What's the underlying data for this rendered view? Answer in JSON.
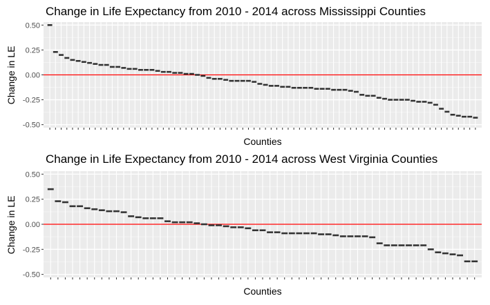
{
  "chart_data": [
    {
      "type": "scatter",
      "title": "Change in Life Expectancy from 2010 - 2014 across Mississippi Counties",
      "xlabel": "Counties",
      "ylabel": "Change in LE",
      "y_ticks": [
        "0.50",
        "0.25",
        "0.00",
        "-0.25",
        "-0.50"
      ],
      "y_tick_values": [
        0.5,
        0.25,
        0,
        -0.25,
        -0.5
      ],
      "ylim": [
        -0.53,
        0.53
      ],
      "grid": true,
      "reference_line": {
        "y": 0,
        "color": "#ff0000"
      },
      "mark_color": "#333333",
      "values": [
        0.5,
        0.23,
        0.2,
        0.17,
        0.15,
        0.14,
        0.13,
        0.12,
        0.11,
        0.1,
        0.1,
        0.08,
        0.08,
        0.07,
        0.06,
        0.06,
        0.05,
        0.05,
        0.05,
        0.04,
        0.03,
        0.03,
        0.02,
        0.02,
        0.01,
        0.01,
        0.0,
        -0.01,
        -0.03,
        -0.04,
        -0.04,
        -0.05,
        -0.06,
        -0.06,
        -0.06,
        -0.06,
        -0.07,
        -0.09,
        -0.1,
        -0.11,
        -0.11,
        -0.12,
        -0.12,
        -0.13,
        -0.13,
        -0.13,
        -0.13,
        -0.14,
        -0.14,
        -0.14,
        -0.15,
        -0.15,
        -0.15,
        -0.16,
        -0.17,
        -0.2,
        -0.21,
        -0.21,
        -0.23,
        -0.24,
        -0.25,
        -0.25,
        -0.25,
        -0.25,
        -0.26,
        -0.27,
        -0.27,
        -0.28,
        -0.3,
        -0.34,
        -0.37,
        -0.4,
        -0.41,
        -0.42,
        -0.42,
        -0.43
      ]
    },
    {
      "type": "scatter",
      "title": "Change in Life Expectancy from 2010 - 2014 across West Virginia Counties",
      "xlabel": "Counties",
      "ylabel": "Change in LE",
      "y_ticks": [
        "0.50",
        "0.25",
        "0.00",
        "-0.25",
        "-0.50"
      ],
      "y_tick_values": [
        0.5,
        0.25,
        0,
        -0.25,
        -0.5
      ],
      "ylim": [
        -0.53,
        0.53
      ],
      "grid": true,
      "reference_line": {
        "y": 0,
        "color": "#ff0000"
      },
      "mark_color": "#333333",
      "values": [
        0.35,
        0.23,
        0.22,
        0.18,
        0.18,
        0.16,
        0.15,
        0.14,
        0.13,
        0.13,
        0.12,
        0.08,
        0.07,
        0.06,
        0.06,
        0.06,
        0.03,
        0.02,
        0.02,
        0.02,
        0.01,
        0.0,
        -0.01,
        -0.01,
        -0.02,
        -0.03,
        -0.03,
        -0.04,
        -0.06,
        -0.06,
        -0.08,
        -0.08,
        -0.09,
        -0.09,
        -0.09,
        -0.09,
        -0.09,
        -0.1,
        -0.1,
        -0.11,
        -0.12,
        -0.12,
        -0.12,
        -0.12,
        -0.13,
        -0.19,
        -0.21,
        -0.21,
        -0.21,
        -0.21,
        -0.21,
        -0.21,
        -0.25,
        -0.28,
        -0.29,
        -0.3,
        -0.31,
        -0.37,
        -0.37
      ]
    }
  ]
}
